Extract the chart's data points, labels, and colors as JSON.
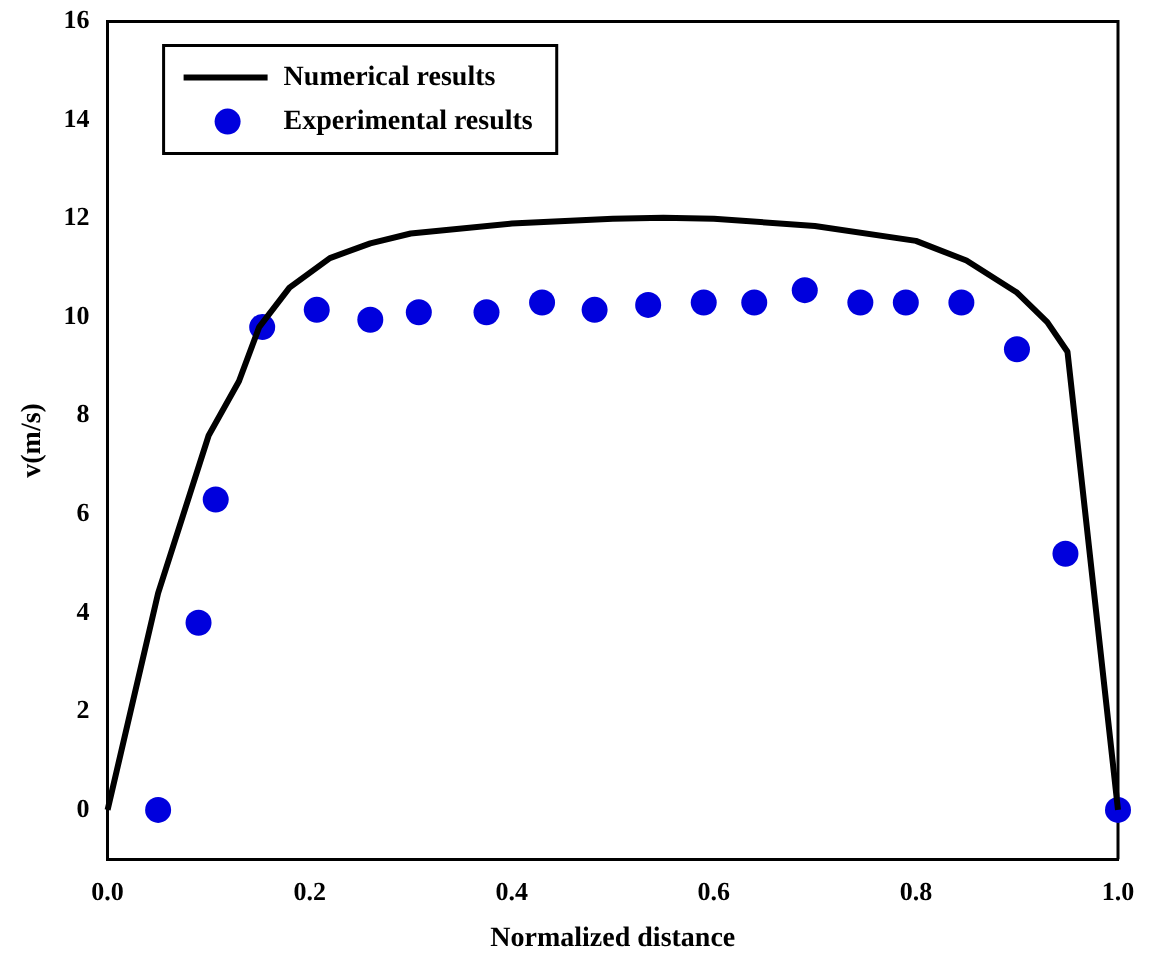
{
  "chart_data": {
    "type": "line",
    "xlabel": "Normalized distance",
    "ylabel": "v(m/s)",
    "xlim": [
      0,
      1
    ],
    "ylim": [
      -1,
      16
    ],
    "xticks": [
      {
        "value": 0,
        "label": "0.0"
      },
      {
        "value": 0.2,
        "label": "0.2"
      },
      {
        "value": 0.4,
        "label": "0.4"
      },
      {
        "value": 0.6,
        "label": "0.6"
      },
      {
        "value": 0.8,
        "label": "0.8"
      },
      {
        "value": 1,
        "label": "1.0"
      }
    ],
    "yticks": [
      0,
      2,
      4,
      6,
      8,
      10,
      12,
      14,
      16
    ],
    "grid": false,
    "legend": "top left",
    "series": [
      {
        "name": "Numerical results",
        "color": "#000000",
        "marker": "none",
        "line_style": "solid",
        "x": [
          0,
          0.05,
          0.1,
          0.13,
          0.15,
          0.18,
          0.22,
          0.26,
          0.3,
          0.4,
          0.5,
          0.55,
          0.6,
          0.7,
          0.8,
          0.85,
          0.9,
          0.93,
          0.95,
          1.0
        ],
        "values": [
          0,
          4.4,
          7.6,
          8.7,
          9.8,
          10.6,
          11.2,
          11.5,
          11.7,
          11.9,
          12.0,
          12.02,
          12.0,
          11.85,
          11.55,
          11.15,
          10.5,
          9.9,
          9.3,
          0
        ]
      },
      {
        "name": "Experimental results",
        "type": "scatter",
        "color": "#0000dd",
        "marker": "circle",
        "x": [
          0.05,
          0.09,
          0.107,
          0.153,
          0.207,
          0.26,
          0.308,
          0.375,
          0.43,
          0.482,
          0.535,
          0.59,
          0.64,
          0.69,
          0.745,
          0.79,
          0.845,
          0.9,
          0.948,
          1.0
        ],
        "values": [
          0,
          3.8,
          6.3,
          9.8,
          10.15,
          9.95,
          10.1,
          10.1,
          10.3,
          10.15,
          10.25,
          10.3,
          10.3,
          10.55,
          10.3,
          10.3,
          10.3,
          9.35,
          5.2,
          0
        ]
      }
    ]
  }
}
